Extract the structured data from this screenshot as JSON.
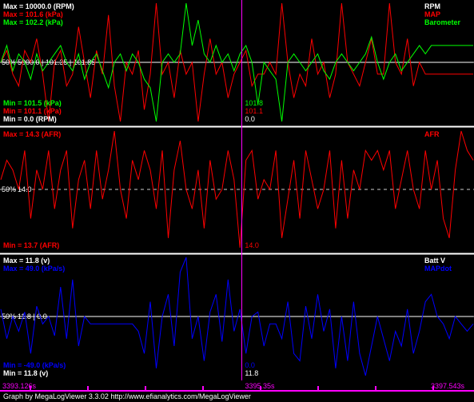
{
  "footer": "Graph by MegaLogViewer 3.3.02 http://www.efianalytics.com/MegaLogViewer",
  "colors": {
    "rpm": "#ffffff",
    "map": "#ff0000",
    "baro": "#00ff00",
    "afr": "#ff0000",
    "batt": "#ffffff",
    "mapdot": "#0000ff",
    "cursor": "#ff00ff",
    "grid": "#ffffff"
  },
  "time_axis": {
    "start": "3393.126s",
    "cursor": "3395.35s",
    "end": "3397.543s"
  },
  "cursor_fraction": 0.51,
  "chart_data": [
    {
      "type": "line",
      "panel": "top",
      "series": [
        {
          "name": "RPM",
          "color": "#ffffff",
          "max_label": "Max = 10000.0 (RPM)",
          "min_label": "Min = 0.0 (RPM)",
          "cursor_value": "0.0",
          "values": [
            0,
            0,
            0,
            0,
            0,
            0,
            0,
            0,
            0,
            0,
            0,
            0,
            0,
            0,
            0,
            0,
            0,
            0,
            0,
            0,
            0,
            0,
            0,
            0,
            0,
            0,
            0,
            0,
            0,
            0,
            0,
            0,
            0,
            0,
            0,
            0,
            0,
            0,
            0,
            0,
            0,
            0,
            0,
            0,
            0,
            0,
            0,
            0,
            0,
            0,
            0,
            0,
            0,
            0,
            0,
            0,
            0,
            0,
            0,
            0,
            0,
            0,
            0,
            0,
            0,
            0,
            0,
            0,
            0,
            0,
            0,
            0,
            0,
            0,
            0,
            0,
            0,
            0,
            0,
            0
          ]
        },
        {
          "name": "MAP",
          "color": "#ff0000",
          "max_label": "Max = 101.6 (kPa)",
          "min_label": "Min = 101.1 (kPa)",
          "cursor_value": "101.1",
          "values": [
            101.35,
            101.4,
            101.3,
            101.25,
            101.4,
            101.35,
            101.45,
            101.3,
            101.1,
            101.35,
            101.4,
            101.25,
            101.3,
            101.5,
            101.35,
            101.2,
            101.4,
            101.3,
            101.55,
            101.25,
            101.1,
            101.35,
            101.3,
            101.4,
            101.15,
            101.3,
            101.6,
            101.3,
            101.35,
            101.2,
            101.4,
            101.3,
            101.35,
            101.1,
            101.3,
            101.45,
            101.3,
            101.35,
            101.2,
            101.3,
            101.35,
            101.4,
            101.25,
            101.3,
            101.3,
            101.35,
            101.3,
            101.6,
            101.35,
            101.2,
            101.3,
            101.25,
            101.45,
            101.3,
            101.35,
            101.2,
            101.3,
            101.6,
            101.35,
            101.3,
            101.25,
            101.35,
            101.45,
            101.3,
            101.3,
            101.6,
            101.35,
            101.3,
            101.45,
            101.25,
            101.35,
            101.3,
            101.3,
            101.3,
            101.3,
            101.3,
            101.3,
            101.3,
            101.3,
            101.3
          ]
        },
        {
          "name": "Barometer",
          "color": "#00ff00",
          "max_label": "Max = 102.2 (kPa)",
          "min_label": "Min = 101.5 (kPa)",
          "cursor_value": "101.8",
          "values": [
            101.85,
            101.95,
            101.8,
            101.9,
            101.85,
            101.75,
            101.9,
            101.8,
            101.85,
            101.9,
            101.95,
            101.85,
            101.8,
            101.9,
            101.75,
            101.85,
            101.9,
            101.8,
            101.7,
            101.85,
            101.9,
            101.8,
            101.9,
            101.85,
            101.75,
            101.7,
            101.5,
            101.85,
            101.9,
            101.85,
            101.9,
            102.2,
            101.95,
            102.1,
            101.9,
            101.85,
            101.95,
            101.85,
            101.9,
            101.8,
            101.9,
            101.95,
            101.85,
            101.6,
            101.85,
            101.8,
            101.75,
            101.5,
            101.85,
            101.9,
            101.85,
            101.8,
            101.85,
            101.9,
            101.8,
            101.75,
            101.85,
            101.9,
            101.85,
            101.8,
            101.85,
            101.9,
            102.0,
            101.85,
            101.75,
            101.85,
            101.9,
            101.8,
            101.85,
            101.9,
            101.95,
            101.9,
            101.95,
            101.95,
            101.95,
            101.95,
            101.95,
            101.95,
            101.95,
            101.95
          ]
        }
      ],
      "mid_label": "50%",
      "mid_values": "5000.0 | 101.35 | 101.85"
    },
    {
      "type": "line",
      "panel": "middle",
      "series": [
        {
          "name": "AFR",
          "color": "#ff0000",
          "max_label": "Max = 14.3 (AFR)",
          "min_label": "Min = 13.7 (AFR)",
          "cursor_value": "14.0",
          "values": [
            14.05,
            14.15,
            14.1,
            14.0,
            14.2,
            13.85,
            14.1,
            14.0,
            14.2,
            13.9,
            14.1,
            14.2,
            13.8,
            14.05,
            14.15,
            13.9,
            14.2,
            13.95,
            14.1,
            14.3,
            14.0,
            13.85,
            14.15,
            14.05,
            14.2,
            14.1,
            13.9,
            14.2,
            13.75,
            14.1,
            14.25,
            14.0,
            13.9,
            14.1,
            13.8,
            14.15,
            13.95,
            14.0,
            14.2,
            14.05,
            13.7,
            14.15,
            14.2,
            13.95,
            14.05,
            14.0,
            14.2,
            13.75,
            13.95,
            14.15,
            13.85,
            14.2,
            14.05,
            13.9,
            14.0,
            14.2,
            13.8,
            14.15,
            13.85,
            14.1,
            14.0,
            14.2,
            14.15,
            14.2,
            14.1,
            14.2,
            13.9,
            14.05,
            14.2,
            14.0,
            13.9,
            14.2,
            14.0,
            14.15,
            13.85,
            13.75,
            14.1,
            14.3,
            14.2,
            14.15
          ]
        }
      ],
      "mid_label": "50%",
      "mid_values": "14.0"
    },
    {
      "type": "line",
      "panel": "bottom",
      "series": [
        {
          "name": "Batt V",
          "color": "#ffffff",
          "max_label": "Max = 11.8 (v)",
          "min_label": "Min = 11.8 (v)",
          "cursor_value": "11.8",
          "values": [
            11.8,
            11.8,
            11.8,
            11.8,
            11.8,
            11.8,
            11.8,
            11.8,
            11.8,
            11.8,
            11.8,
            11.8,
            11.8,
            11.8,
            11.8,
            11.8,
            11.8,
            11.8,
            11.8,
            11.8,
            11.8,
            11.8,
            11.8,
            11.8,
            11.8,
            11.8,
            11.8,
            11.8,
            11.8,
            11.8,
            11.8,
            11.8,
            11.8,
            11.8,
            11.8,
            11.8,
            11.8,
            11.8,
            11.8,
            11.8,
            11.8,
            11.8,
            11.8,
            11.8,
            11.8,
            11.8,
            11.8,
            11.8,
            11.8,
            11.8,
            11.8,
            11.8,
            11.8,
            11.8,
            11.8,
            11.8,
            11.8,
            11.8,
            11.8,
            11.8,
            11.8,
            11.8,
            11.8,
            11.8,
            11.8,
            11.8,
            11.8,
            11.8,
            11.8,
            11.8,
            11.8,
            11.8,
            11.8,
            11.8,
            11.8,
            11.8,
            11.8,
            11.8,
            11.8,
            11.8
          ]
        },
        {
          "name": "MAPdot",
          "color": "#0000ff",
          "max_label": "Max = 49.0 (kPa/s)",
          "min_label": "Min = -49.0 (kPa/s)",
          "cursor_value": "0.0",
          "values": [
            10,
            -10,
            5,
            -5,
            8,
            -20,
            12,
            0,
            5,
            -8,
            25,
            -10,
            30,
            -15,
            5,
            0,
            0,
            0,
            0,
            0,
            0,
            0,
            0,
            -5,
            -20,
            15,
            -30,
            5,
            20,
            -15,
            35,
            45,
            -10,
            5,
            -25,
            8,
            20,
            -12,
            30,
            -5,
            10,
            -20,
            5,
            8,
            -15,
            0,
            0,
            -10,
            15,
            -20,
            -25,
            12,
            -10,
            20,
            -5,
            10,
            -30,
            5,
            -25,
            15,
            -20,
            -35,
            -15,
            5,
            -10,
            -25,
            -5,
            -15,
            10,
            -20,
            -5,
            15,
            20,
            5,
            0,
            -10,
            5,
            0,
            -5,
            0
          ]
        }
      ],
      "mid_label": "50%",
      "mid_values": "11.8 | 0.0"
    }
  ]
}
